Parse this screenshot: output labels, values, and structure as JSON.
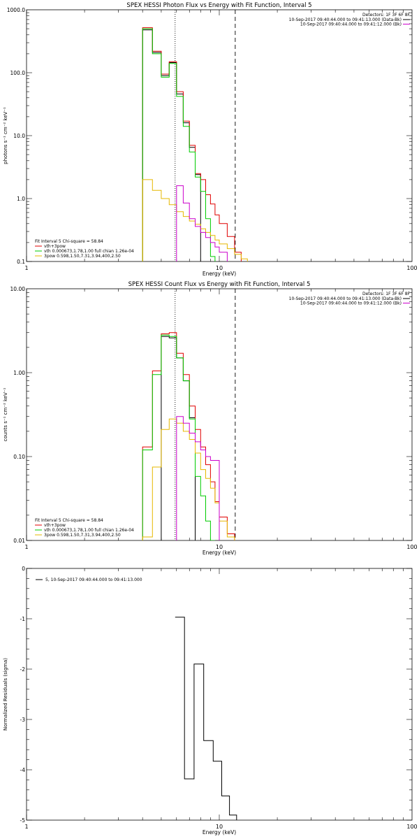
{
  "chart_data": [
    {
      "type": "line",
      "subtype": "step-histogram",
      "title": "SPEX HESSI Photon Flux vs Energy with Fit Function, Interval 5",
      "xlabel": "Energy (keV)",
      "ylabel": "photons s⁻¹ cm⁻² keV⁻¹",
      "xscale": "log",
      "yscale": "log",
      "xlim": [
        1,
        100
      ],
      "ylim": [
        0.1,
        1000
      ],
      "xticks": [
        1,
        10,
        100
      ],
      "xtick_labels": [
        "1",
        "10",
        "100"
      ],
      "yticks": [
        0.1,
        1,
        10,
        100,
        1000
      ],
      "ytick_labels": [
        "0.1",
        "1.0",
        "10.0",
        "100.0",
        "1000.0"
      ],
      "vlines": [
        {
          "x": 5.9,
          "style": "dotted"
        },
        {
          "x": 12.1,
          "style": "dashed"
        }
      ],
      "legend_top_right": {
        "detectors": "Detectors: 1F 3F 6F 8F",
        "lines": [
          {
            "text": "10-Sep-2017 09:40:44.000 to 09:41:13.000 (Data-Bk)",
            "color": "#000000"
          },
          {
            "text": "10-Sep-2017 09:40:44.000 to 09:41:12.000 (Bk)",
            "color": "#cc00cc"
          }
        ]
      },
      "legend_bottom_left": {
        "header": "Fit Interval 5   Chi-square = 58.84",
        "entries": [
          {
            "text": "vth+3pow",
            "color": "#e00000"
          },
          {
            "text": "vth 0.000673,1.78,1.00  full chian 1.26e-04",
            "color": "#00cc00"
          },
          {
            "text": "3pow 0.598,1.50,7.31,3.94,400,2.50",
            "color": "#e6b800"
          }
        ]
      },
      "edges": [
        4.0,
        4.5,
        5.0,
        5.5,
        6.0,
        6.5,
        7.0,
        7.5,
        8.0,
        8.5,
        9.0,
        9.5,
        10.0,
        11.0,
        12.0,
        13.0,
        14.0,
        15.0,
        16.0,
        18.0,
        20.0
      ],
      "series": [
        {
          "color": "#000000",
          "start": 0,
          "values": [
            480,
            210,
            90,
            145,
            46,
            16,
            6.5,
            2.4,
            null,
            null,
            null,
            null,
            null,
            null,
            null,
            null,
            null,
            null,
            null,
            null
          ]
        },
        {
          "color": "#e00000",
          "start": 0,
          "values": [
            520,
            220,
            95,
            150,
            50,
            17,
            7.0,
            2.5,
            2.0,
            1.15,
            0.82,
            0.55,
            0.4,
            0.25,
            0.14,
            null,
            null,
            null,
            null,
            null
          ]
        },
        {
          "color": "#00cc00",
          "start": 0,
          "values": [
            500,
            200,
            85,
            140,
            42,
            14,
            5.5,
            2.2,
            1.3,
            0.48,
            0.12,
            null,
            null,
            null,
            null,
            null,
            null,
            null,
            null,
            null
          ]
        },
        {
          "color": "#e6b800",
          "start": 0,
          "values": [
            2.0,
            1.35,
            1.0,
            0.8,
            0.62,
            0.52,
            0.44,
            0.39,
            0.33,
            0.29,
            0.26,
            0.22,
            0.19,
            0.16,
            0.13,
            0.11,
            null,
            null,
            null,
            null
          ]
        },
        {
          "color": "#cc00cc",
          "start": 4,
          "values": [
            1.6,
            0.85,
            0.48,
            0.36,
            0.29,
            0.24,
            0.2,
            0.17,
            0.14,
            null,
            null,
            null,
            null,
            null,
            null,
            null
          ]
        }
      ]
    },
    {
      "type": "line",
      "subtype": "step-histogram",
      "title": "SPEX HESSI Count Flux vs Energy with Fit Function, Interval 5",
      "xlabel": "Energy (keV)",
      "ylabel": "counts s⁻¹ cm⁻² keV⁻¹",
      "xscale": "log",
      "yscale": "log",
      "xlim": [
        1,
        100
      ],
      "ylim": [
        0.01,
        10
      ],
      "xticks": [
        1,
        10,
        100
      ],
      "xtick_labels": [
        "1",
        "10",
        "100"
      ],
      "yticks": [
        0.01,
        0.1,
        1,
        10
      ],
      "ytick_labels": [
        "0.01",
        "0.10",
        "1.00",
        "10.00"
      ],
      "vlines": [
        {
          "x": 5.9,
          "style": "dotted"
        },
        {
          "x": 12.1,
          "style": "dashed"
        }
      ],
      "legend_top_right": {
        "detectors": "Detectors: 1F 3F 6F 8F",
        "lines": [
          {
            "text": "10-Sep-2017 09:40:44.000 to 09:41:13.000 (Data-Bk)",
            "color": "#000000"
          },
          {
            "text": "10-Sep-2017 09:40:44.000 to 09:41:12.000 (Bk)",
            "color": "#cc00cc"
          }
        ]
      },
      "legend_bottom_left": {
        "header": "Fit Interval 5   Chi-square = 58.84",
        "entries": [
          {
            "text": "vth+3pow",
            "color": "#e00000"
          },
          {
            "text": "vth 0.000673,1.78,1.00  full chian 1.26e-04",
            "color": "#00cc00"
          },
          {
            "text": "3pow 0.598,1.50,7.31,3.94,400,2.50",
            "color": "#e6b800"
          }
        ]
      },
      "edges": [
        4.0,
        4.5,
        5.0,
        5.5,
        6.0,
        6.5,
        7.0,
        7.5,
        8.0,
        8.5,
        9.0,
        9.5,
        10.0,
        11.0,
        12.0,
        13.0,
        14.0,
        15.0,
        16.0,
        18.0,
        20.0
      ],
      "series": [
        {
          "color": "#000000",
          "start": 2,
          "values": [
            2.7,
            2.6,
            1.5,
            0.8,
            0.29,
            null,
            null,
            null,
            null,
            null,
            null,
            null,
            null,
            null
          ]
        },
        {
          "color": "#e00000",
          "start": 0,
          "values": [
            0.13,
            1.05,
            2.9,
            3.0,
            1.7,
            0.95,
            0.4,
            0.21,
            0.13,
            0.08,
            0.05,
            0.029,
            0.019,
            0.012,
            null,
            null,
            null,
            null,
            null,
            null
          ]
        },
        {
          "color": "#00cc00",
          "start": 0,
          "values": [
            0.12,
            0.95,
            2.8,
            2.7,
            1.5,
            0.8,
            0.28,
            0.058,
            0.034,
            0.017,
            0.01,
            null,
            null,
            null,
            null,
            null,
            null,
            null,
            null,
            null
          ]
        },
        {
          "color": "#e6b800",
          "start": 0,
          "values": [
            0.011,
            0.075,
            0.21,
            0.28,
            0.25,
            0.2,
            0.16,
            0.11,
            0.07,
            0.055,
            0.042,
            0.028,
            0.017,
            0.011,
            null,
            null,
            null,
            null,
            null,
            null
          ]
        },
        {
          "color": "#cc00cc",
          "start": 4,
          "values": [
            0.3,
            0.25,
            0.19,
            0.15,
            0.12,
            0.1,
            0.09,
            0.09,
            null,
            null,
            null,
            null,
            null,
            null,
            null,
            null
          ]
        }
      ]
    },
    {
      "type": "line",
      "subtype": "step-histogram",
      "title": "",
      "xlabel": "Energy (keV)",
      "ylabel": "Normalized Residuals (sigma)",
      "xscale": "log",
      "yscale": "linear",
      "xlim": [
        1,
        100
      ],
      "ylim": [
        -5,
        0
      ],
      "xticks": [
        1,
        10,
        100
      ],
      "xtick_labels": [
        "1",
        "10",
        "100"
      ],
      "yticks": [
        -5,
        -4,
        -3,
        -2,
        -1,
        0
      ],
      "ytick_labels": [
        "-5",
        "-4",
        "-3",
        "-2",
        "-1",
        "0"
      ],
      "legend_top_left": {
        "entries": [
          {
            "text": "5, 10-Sep-2017 09:40:44.000 to 09:41:13.000",
            "color": "#000000"
          }
        ]
      },
      "edges": [
        5.9,
        6.6,
        7.4,
        8.3,
        9.3,
        10.3,
        11.3,
        12.3
      ],
      "series": [
        {
          "color": "#000000",
          "start": 0,
          "values": [
            -0.97,
            -4.18,
            -1.9,
            -3.42,
            -3.83,
            -4.52,
            -4.9
          ]
        }
      ]
    }
  ]
}
